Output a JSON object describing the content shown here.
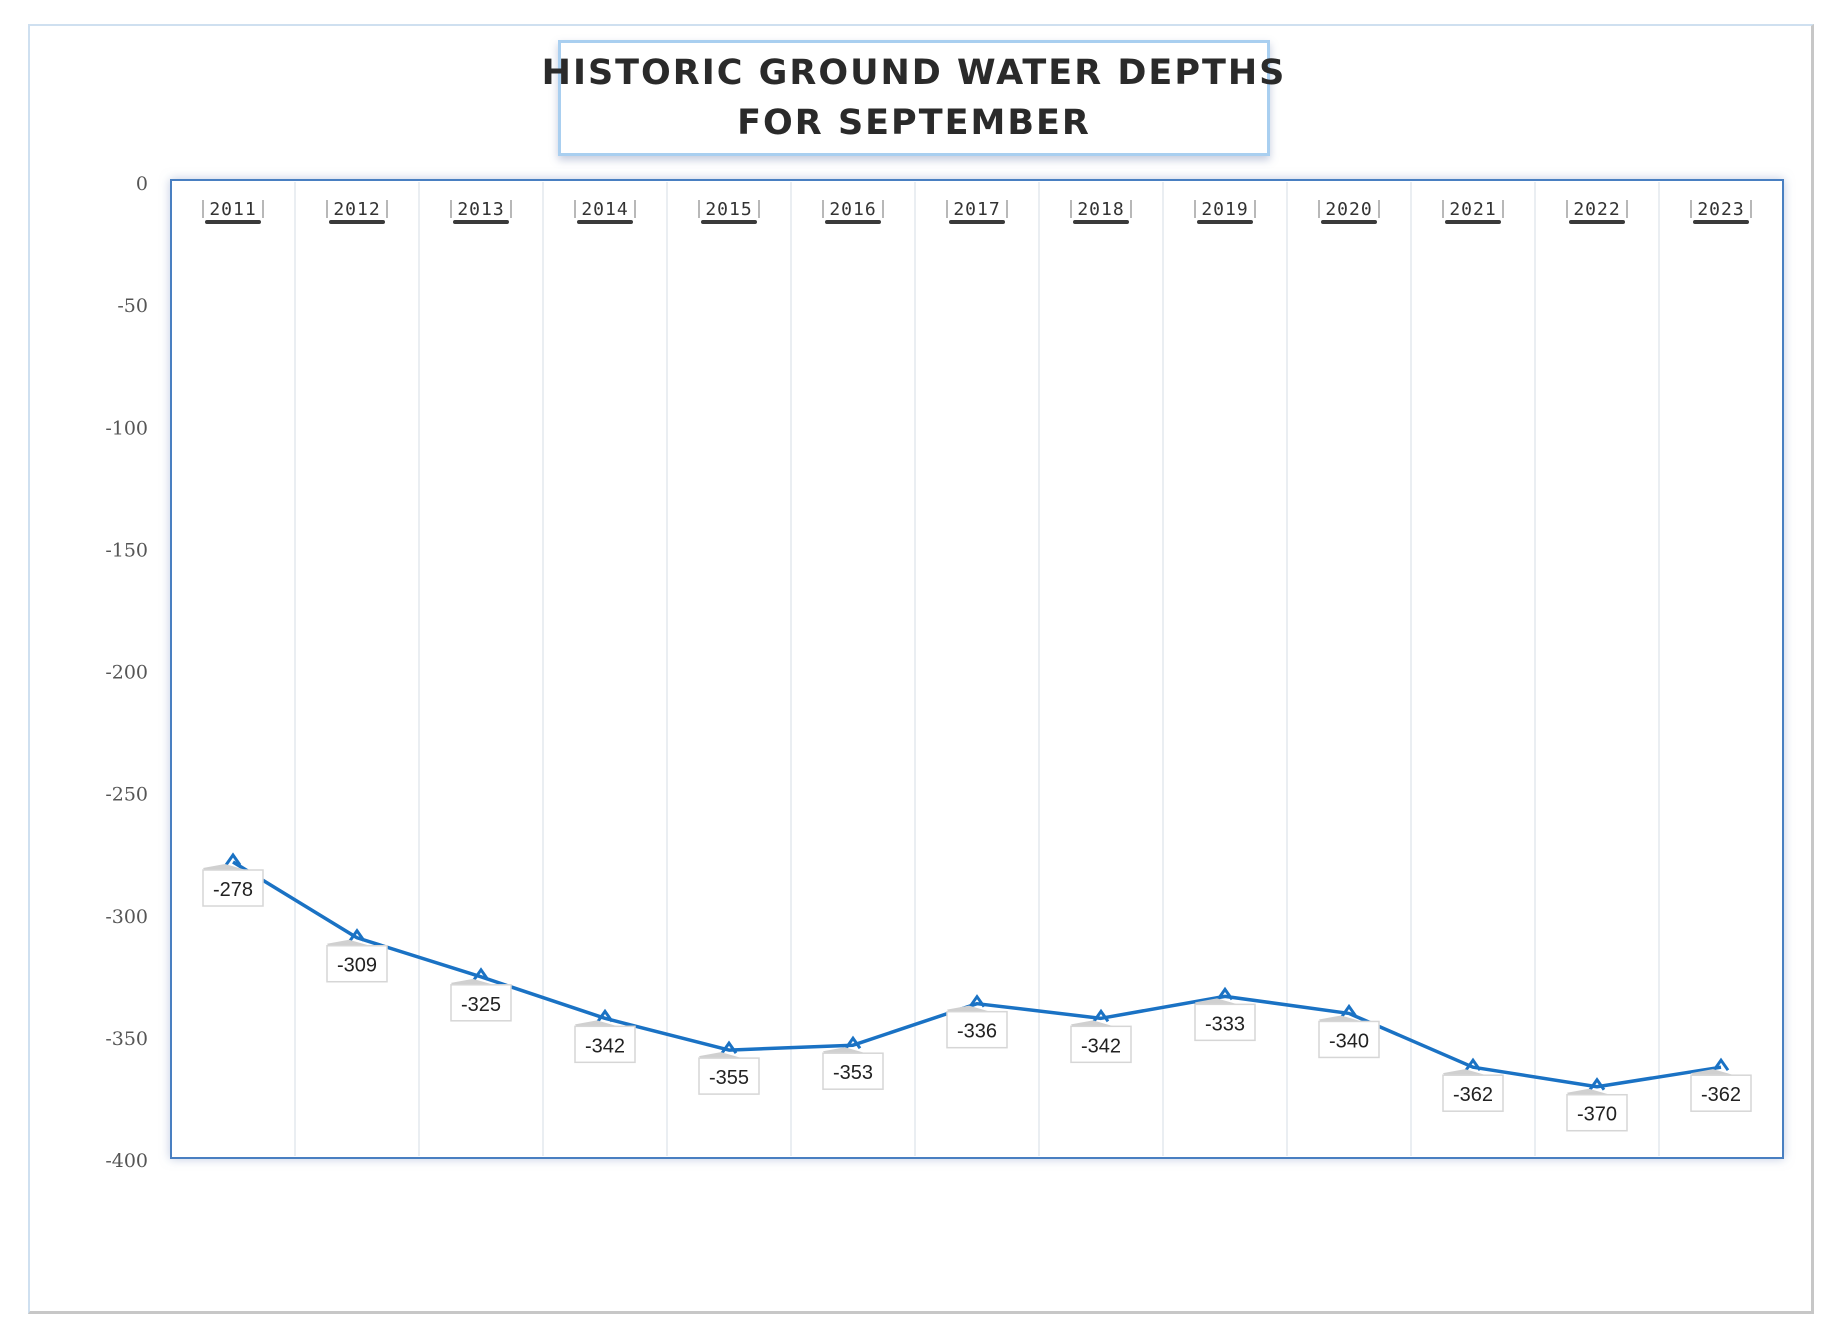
{
  "chart_data": {
    "type": "line",
    "title": "HISTORIC GROUND WATER DEPTHS FOR SEPTEMBER",
    "title_lines": [
      "HISTORIC GROUND WATER DEPTHS",
      "FOR SEPTEMBER"
    ],
    "categories": [
      "2011",
      "2012",
      "2013",
      "2014",
      "2015",
      "2016",
      "2017",
      "2018",
      "2019",
      "2020",
      "2021",
      "2022",
      "2023"
    ],
    "series": [
      {
        "values": [
          -278,
          -309,
          -325,
          -342,
          -355,
          -353,
          -336,
          -342,
          -333,
          -340,
          -362,
          -370,
          -362
        ],
        "color": "#1a72c4"
      }
    ],
    "yticks": [
      0,
      -50,
      -100,
      -150,
      -200,
      -250,
      -300,
      -350,
      -400
    ],
    "ylim": [
      -400,
      0
    ],
    "xaxis_position": "top",
    "data_labels": true,
    "grid": "vertical",
    "legend": "none",
    "xlabel": "",
    "ylabel": ""
  }
}
